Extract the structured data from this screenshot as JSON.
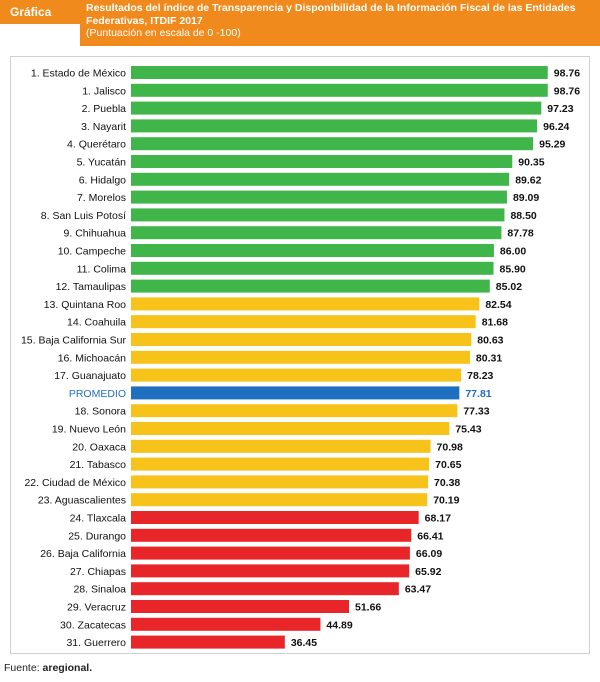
{
  "header": {
    "tag": "Gráfica",
    "title": "Resultados del índice de Transparencia y Disponibilidad de la Información Fiscal de las Entidades Federativas, ITDIF 2017",
    "subtitle": "(Puntuación en escala de 0 -100)"
  },
  "source": {
    "label": "Fuente:",
    "value": "aregional."
  },
  "colors": {
    "header": "#f08a1c",
    "green": "#3fb54a",
    "yellow": "#f7c21a",
    "blue": "#1f6fbf",
    "red": "#e8262a"
  },
  "chart_data": {
    "type": "bar",
    "orientation": "horizontal",
    "title": "Resultados del índice de Transparencia y Disponibilidad de la Información Fiscal de las Entidades Federativas, ITDIF 2017",
    "subtitle": "(Puntuación en escala de 0 -100)",
    "xlim": [
      0,
      100
    ],
    "grid": false,
    "categories": [
      "1. Estado de México",
      "1. Jalisco",
      "2. Puebla",
      "3. Nayarit",
      "4. Querétaro",
      "5. Yucatán",
      "6. Hidalgo",
      "7. Morelos",
      "8. San Luis Potosí",
      "9. Chihuahua",
      "10. Campeche",
      "11. Colima",
      "12. Tamaulipas",
      "13. Quintana Roo",
      "14. Coahuila",
      "15. Baja California Sur",
      "16. Michoacán",
      "17. Guanajuato",
      "PROMEDIO",
      "18. Sonora",
      "19. Nuevo León",
      "20. Oaxaca",
      "21. Tabasco",
      "22. Ciudad de México",
      "23. Aguascalientes",
      "24. Tlaxcala",
      "25. Durango",
      "26. Baja California",
      "27. Chiapas",
      "28. Sinaloa",
      "29. Veracruz",
      "30. Zacatecas",
      "31. Guerrero"
    ],
    "values": [
      98.76,
      98.76,
      97.23,
      96.24,
      95.29,
      90.35,
      89.62,
      89.09,
      88.5,
      87.78,
      86.0,
      85.9,
      85.02,
      82.54,
      81.68,
      80.63,
      80.31,
      78.23,
      77.81,
      77.33,
      75.43,
      70.98,
      70.65,
      70.38,
      70.19,
      68.17,
      66.41,
      66.09,
      65.92,
      63.47,
      51.66,
      44.89,
      36.45
    ],
    "value_labels": [
      "98.76",
      "98.76",
      "97.23",
      "96.24",
      "95.29",
      "90.35",
      "89.62",
      "89.09",
      "88.50",
      "87.78",
      "86.00",
      "85.90",
      "85.02",
      "82.54",
      "81.68",
      "80.63",
      "80.31",
      "78.23",
      "77.81",
      "77.33",
      "75.43",
      "70.98",
      "70.65",
      "70.38",
      "70.19",
      "68.17",
      "66.41",
      "66.09",
      "65.92",
      "63.47",
      "51.66",
      "44.89",
      "36.45"
    ],
    "bar_colors": [
      "green",
      "green",
      "green",
      "green",
      "green",
      "green",
      "green",
      "green",
      "green",
      "green",
      "green",
      "green",
      "green",
      "yellow",
      "yellow",
      "yellow",
      "yellow",
      "yellow",
      "blue",
      "yellow",
      "yellow",
      "yellow",
      "yellow",
      "yellow",
      "yellow",
      "red",
      "red",
      "red",
      "red",
      "red",
      "red",
      "red",
      "red"
    ]
  }
}
